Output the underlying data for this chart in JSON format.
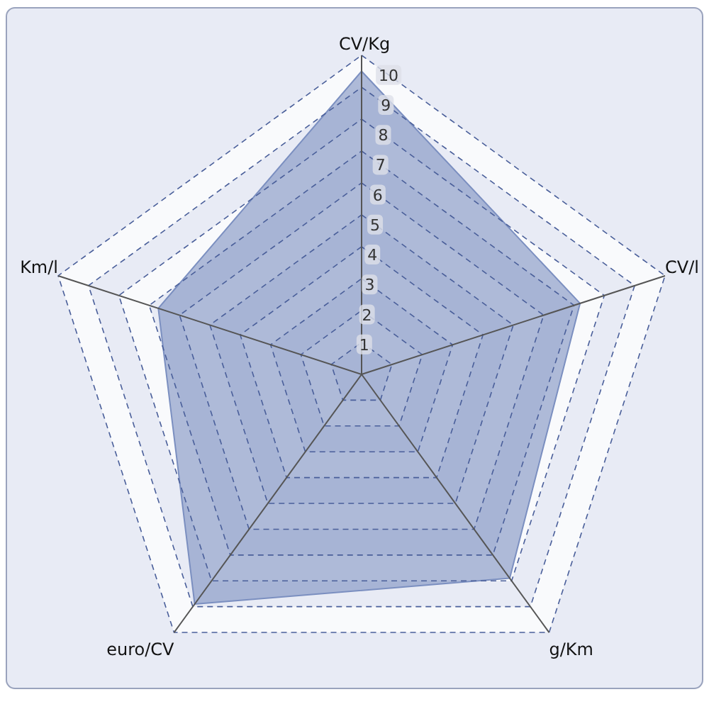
{
  "chart_data": {
    "type": "radar",
    "categories": [
      "CV/Kg",
      "CV/l",
      "g/Km",
      "euro/CV",
      "Km/l"
    ],
    "series": [
      {
        "color": "#7b8fc0",
        "values": [
          9.5,
          7.2,
          7.9,
          8.9,
          6.7
        ]
      }
    ],
    "ylim": [
      0,
      10
    ],
    "yticks": [
      1,
      2,
      3,
      4,
      5,
      6,
      7,
      8,
      9,
      10
    ],
    "grid": true
  }
}
